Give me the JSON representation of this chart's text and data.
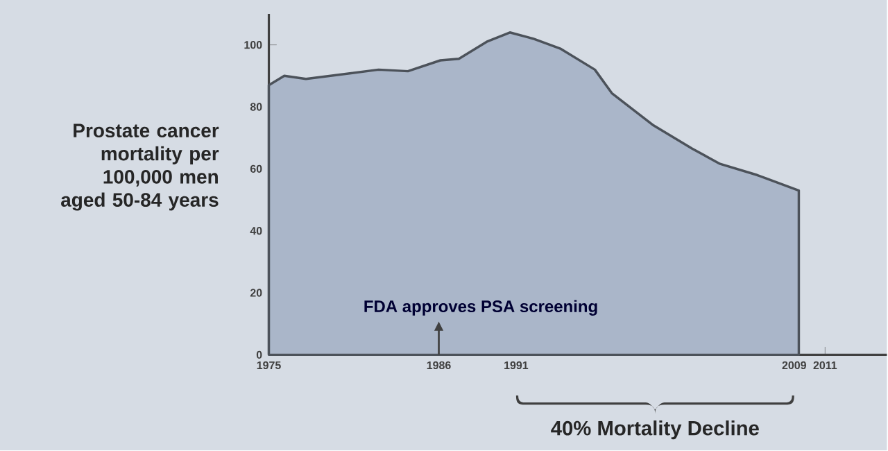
{
  "chart_data": {
    "type": "area",
    "ylabel": "Prostate cancer mortality per 100,000 men aged 50-84 years",
    "x": [
      1975,
      1976,
      1977.4,
      1982.1,
      1984,
      1986.1,
      1987.3,
      1989.1,
      1990.6,
      1992.1,
      1993.9,
      1996.1,
      1997.2,
      1999.9,
      2002.4,
      2004.2,
      2006.6,
      2009.3
    ],
    "series": [
      {
        "color": "#aab6c9",
        "values": [
          87,
          90,
          89,
          92,
          91.5,
          95,
          95.5,
          101,
          104,
          102,
          98.7,
          92,
          84.4,
          74,
          66.5,
          61.6,
          58,
          53
        ]
      }
    ],
    "xlim": [
      1975,
      2015
    ],
    "ylim": [
      0,
      110
    ],
    "xticks": [
      1975,
      1986,
      1991,
      2009,
      2011
    ],
    "yticks": [
      0,
      20,
      40,
      60,
      80,
      100
    ],
    "grid": false,
    "annotations": [
      {
        "text": "FDA approves PSA screening",
        "x": 1986,
        "y": 0
      },
      "40% Mortality Decline"
    ]
  }
}
